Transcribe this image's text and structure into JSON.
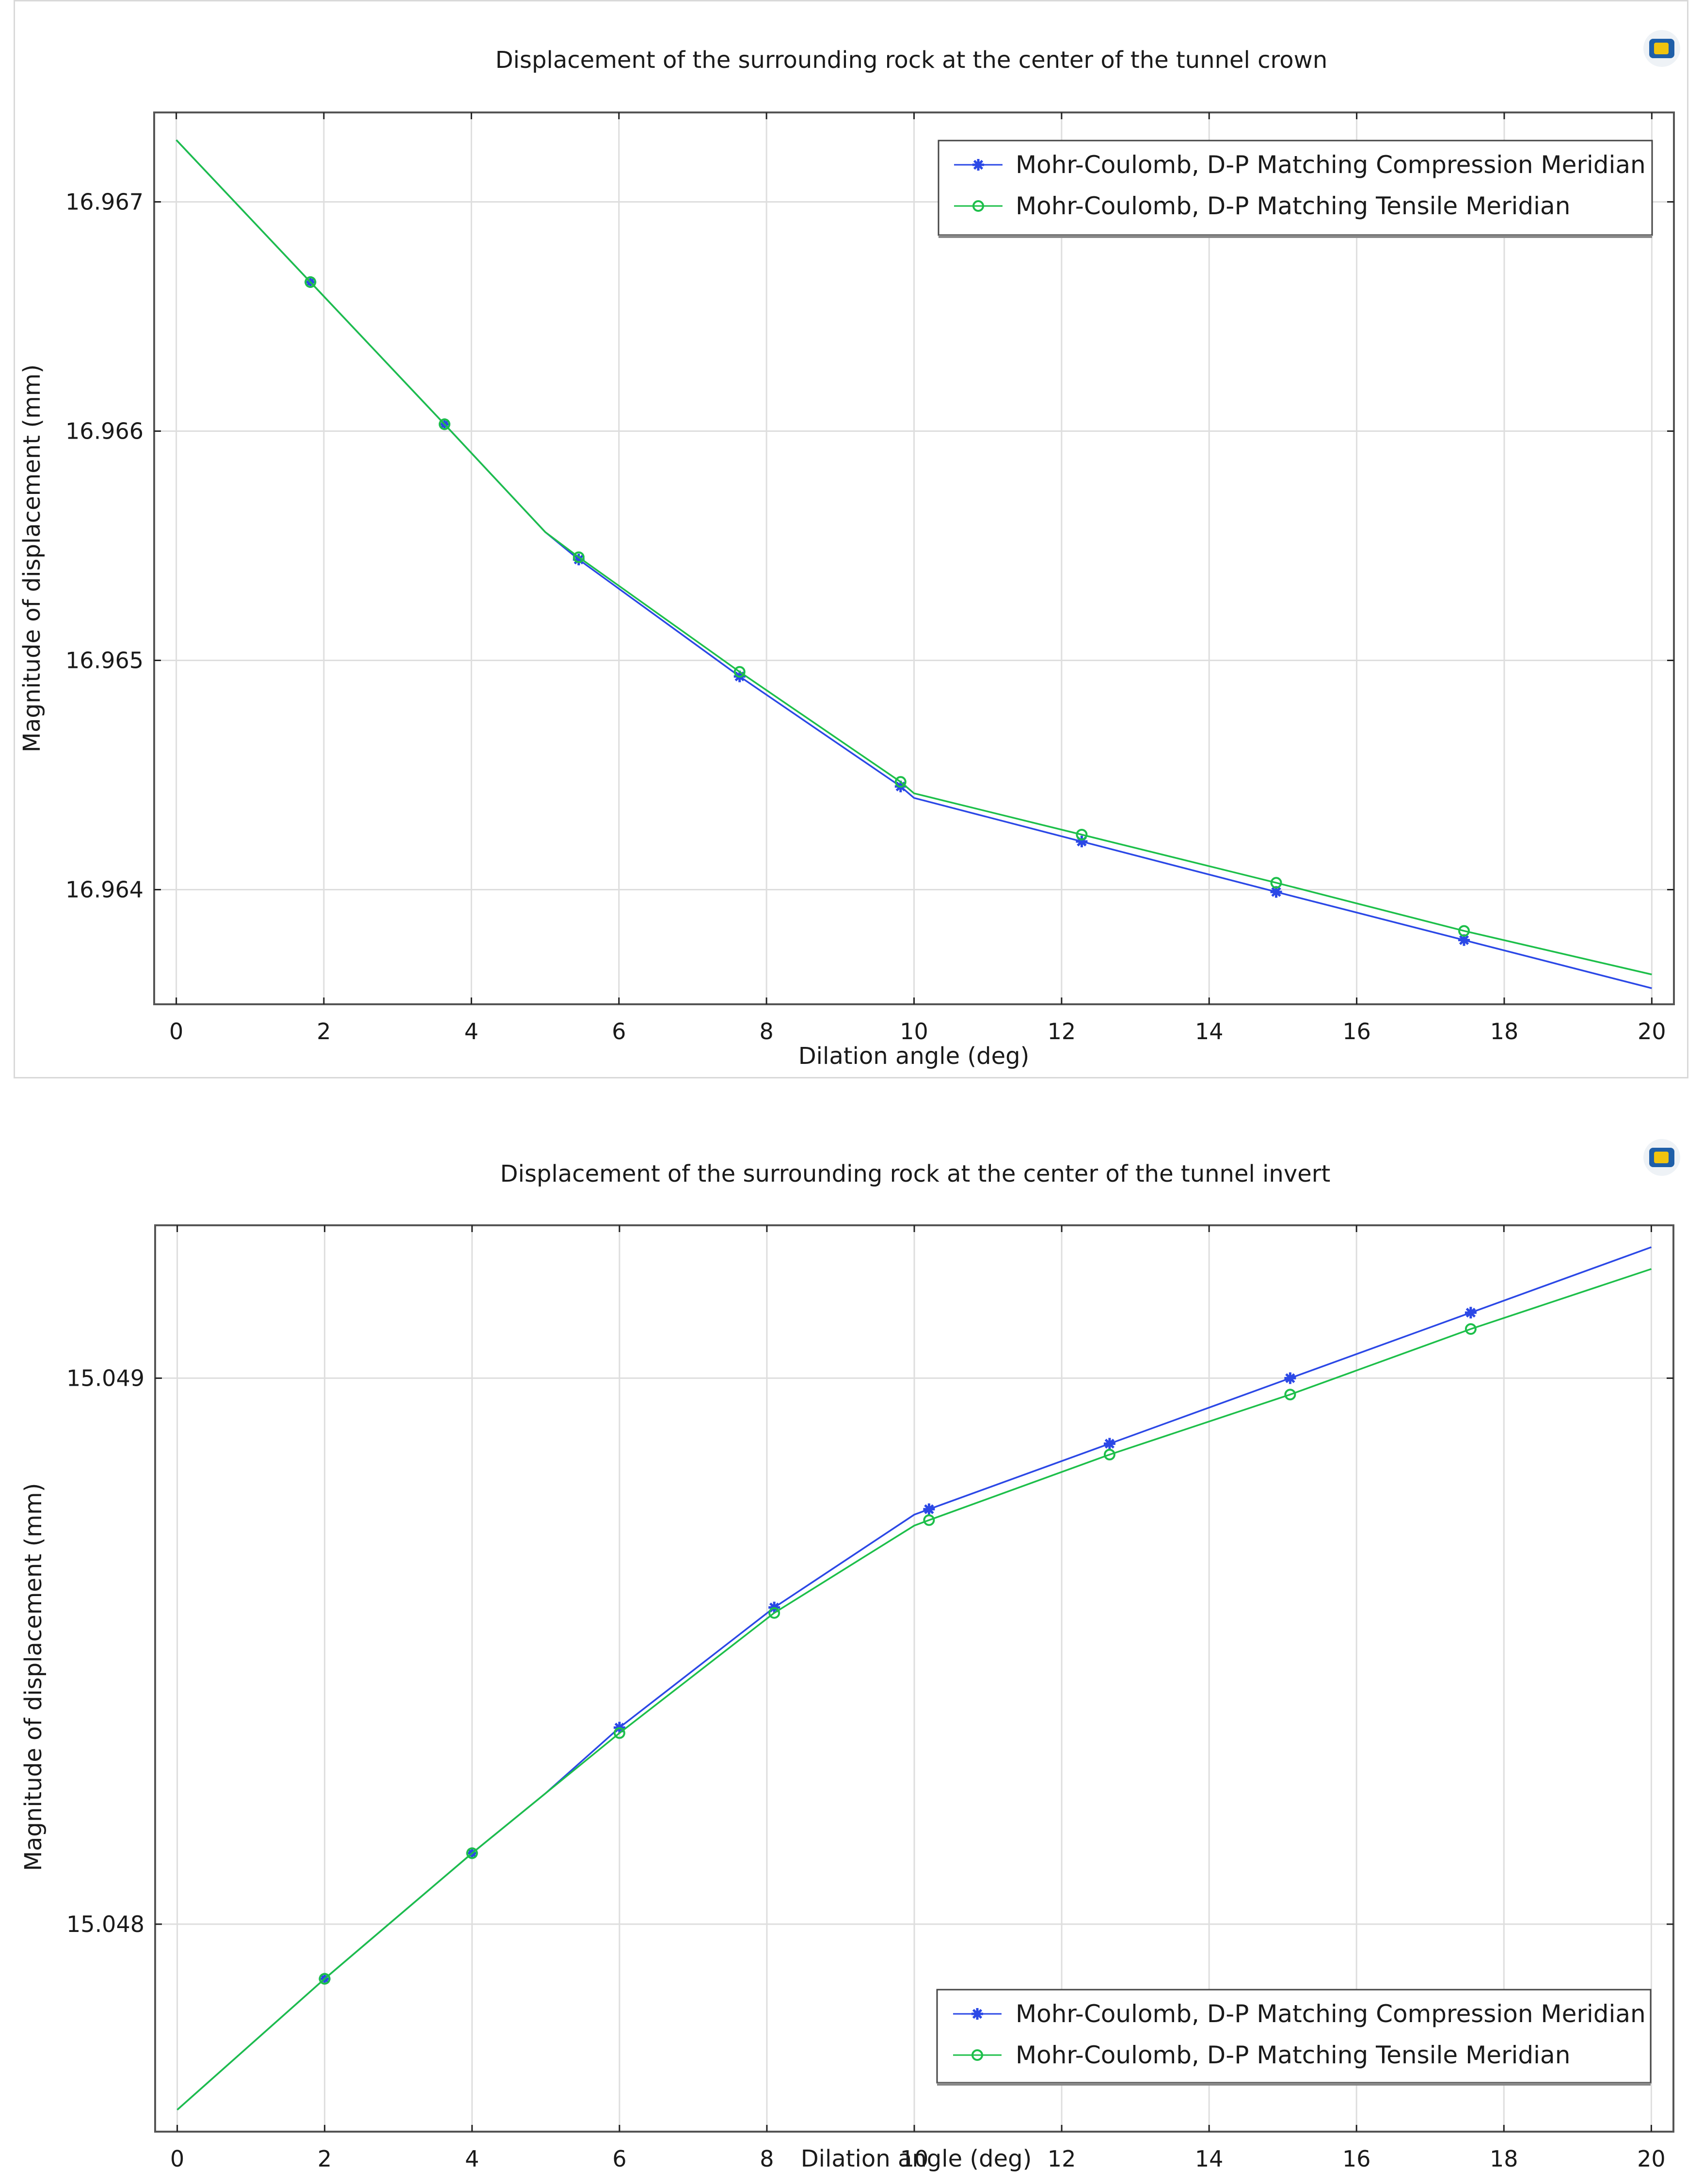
{
  "chart_data": [
    {
      "type": "line",
      "title": "Displacement of the surrounding rock at the center of the tunnel crown",
      "xlabel": "Dilation angle (deg)",
      "ylabel": "Magnitude of displacement (mm)",
      "xlim": [
        -0.3,
        20.3
      ],
      "ylim": [
        16.9635,
        16.96739
      ],
      "xticks": [
        0,
        2,
        4,
        6,
        8,
        10,
        12,
        14,
        16,
        18,
        20
      ],
      "yticks": [
        16.964,
        16.965,
        16.966,
        16.967
      ],
      "ytick_labels": [
        "16.964",
        "16.965",
        "16.966",
        "16.967"
      ],
      "legend_position": "top-right",
      "series": [
        {
          "name": "Mohr-Coulomb, D-P Matching Compression Meridian",
          "color": "#2b48e6",
          "marker": "asterisk",
          "x": [
            0,
            1.818,
            3.636,
            5,
            5.455,
            7.636,
            9.818,
            10,
            12.273,
            14.909,
            17.455,
            20
          ],
          "y": [
            16.96727,
            16.96665,
            16.96603,
            16.96556,
            16.96544,
            16.96493,
            16.96445,
            16.9644,
            16.96421,
            16.96399,
            16.96378,
            16.96357
          ],
          "marker_indices": [
            1,
            2,
            4,
            5,
            6,
            8,
            9,
            10
          ]
        },
        {
          "name": "Mohr-Coulomb, D-P Matching Tensile Meridian",
          "color": "#1dbf4a",
          "marker": "circle",
          "x": [
            0,
            1.818,
            3.636,
            5,
            5.455,
            7.636,
            9.818,
            10,
            12.273,
            14.909,
            17.455,
            20
          ],
          "y": [
            16.96727,
            16.96665,
            16.96603,
            16.96556,
            16.96545,
            16.96495,
            16.96447,
            16.96442,
            16.96424,
            16.96403,
            16.96382,
            16.96363
          ],
          "marker_indices": [
            1,
            2,
            4,
            5,
            6,
            8,
            9,
            10
          ]
        }
      ]
    },
    {
      "type": "line",
      "title": "Displacement of the surrounding rock at the center of the tunnel invert",
      "xlabel": "Dilation angle (deg)",
      "ylabel": "Magnitude of displacement (mm)",
      "xlim": [
        -0.3,
        20.3
      ],
      "ylim": [
        15.04762,
        15.04928
      ],
      "xticks": [
        0,
        2,
        4,
        6,
        8,
        10,
        12,
        14,
        16,
        18,
        20
      ],
      "yticks": [
        15.048,
        15.049
      ],
      "ytick_labels": [
        "15.048",
        "15.049"
      ],
      "legend_position": "bottom-right",
      "series": [
        {
          "name": "Mohr-Coulomb, D-P Matching Compression Meridian",
          "color": "#2b48e6",
          "marker": "asterisk",
          "x": [
            0,
            2,
            4,
            5,
            6,
            8.1,
            10,
            10.2,
            12.65,
            15.1,
            17.55,
            20
          ],
          "y": [
            15.04766,
            15.0479,
            15.04813,
            15.04824,
            15.04836,
            15.04858,
            15.04875,
            15.04876,
            15.04888,
            15.049,
            15.04912,
            15.04924
          ],
          "marker_indices": [
            1,
            2,
            4,
            5,
            7,
            8,
            9,
            10
          ]
        },
        {
          "name": "Mohr-Coulomb, D-P Matching Tensile Meridian",
          "color": "#1dbf4a",
          "marker": "circle",
          "x": [
            0,
            2,
            4,
            5,
            6,
            8.1,
            10,
            10.2,
            12.65,
            15.1,
            17.55,
            20
          ],
          "y": [
            15.04766,
            15.0479,
            15.04813,
            15.04824,
            15.04835,
            15.04857,
            15.04873,
            15.04874,
            15.04886,
            15.04897,
            15.04909,
            15.0492
          ],
          "marker_indices": [
            1,
            2,
            4,
            5,
            7,
            8,
            9,
            10
          ]
        }
      ]
    }
  ]
}
